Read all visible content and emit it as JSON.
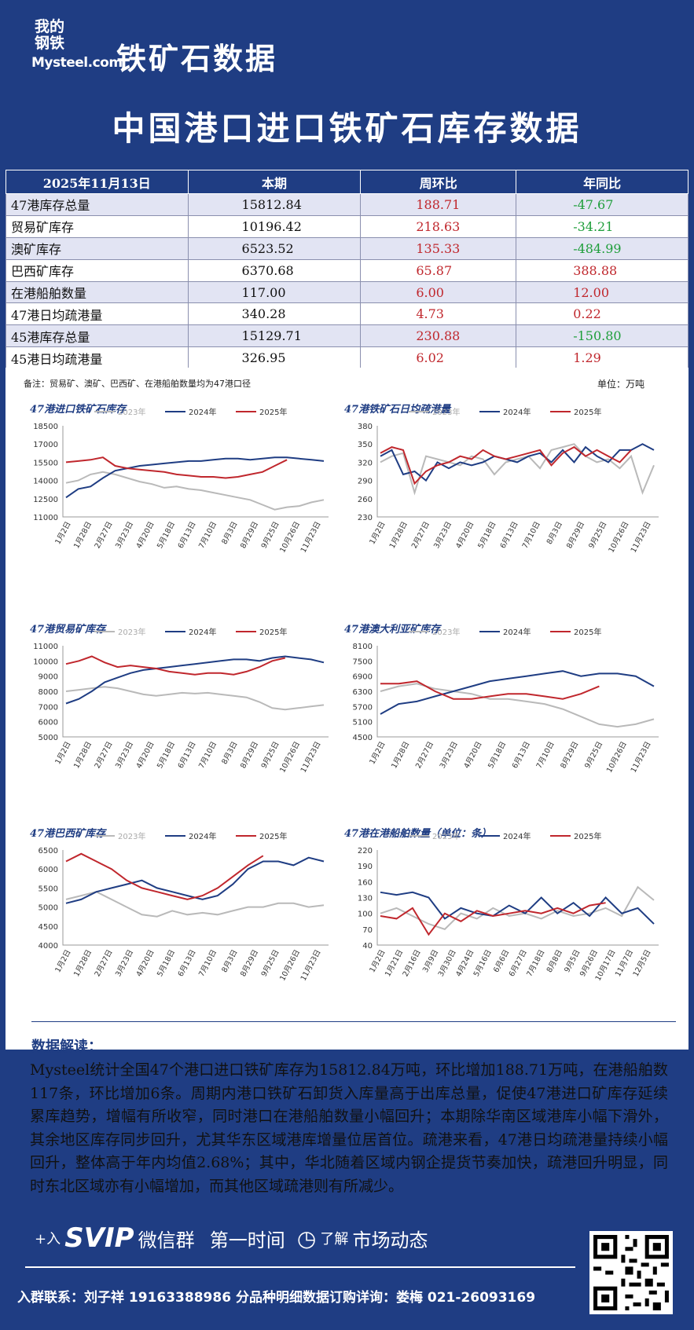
{
  "header": {
    "logo_cn": "我的钢铁",
    "logo_en": "Mysteel.com",
    "brand_title": "铁矿石数据",
    "main_title": "中国港口进口铁矿石库存数据"
  },
  "table": {
    "headers": [
      "2025年11月13日",
      "本期",
      "周环比",
      "年同比"
    ],
    "rows": [
      {
        "name": "47港库存总量",
        "current": "15812.84",
        "wow": "188.71",
        "yoy": "-47.67"
      },
      {
        "name": "贸易矿库存",
        "current": "10196.42",
        "wow": "218.63",
        "yoy": "-34.21"
      },
      {
        "name": "澳矿库存",
        "current": "6523.52",
        "wow": "135.33",
        "yoy": "-484.99"
      },
      {
        "name": "巴西矿库存",
        "current": "6370.68",
        "wow": "65.87",
        "yoy": "388.88"
      },
      {
        "name": "在港船舶数量",
        "current": "117.00",
        "wow": "6.00",
        "yoy": "12.00"
      },
      {
        "name": "47港日均疏港量",
        "current": "340.28",
        "wow": "4.73",
        "yoy": "0.22"
      },
      {
        "name": "45港库存总量",
        "current": "15129.71",
        "wow": "230.88",
        "yoy": "-150.80"
      },
      {
        "name": "45港日均疏港量",
        "current": "326.95",
        "wow": "6.02",
        "yoy": "1.29"
      }
    ],
    "note": "备注：贸易矿、澳矿、巴西矿、在港船舶数量均为47港口径",
    "unit": "单位：万吨"
  },
  "colors": {
    "y2023": "#b9b9b9",
    "y2024": "#1f3d83",
    "y2025": "#c0272d",
    "up": "#c0272d",
    "down": "#1e9e3a"
  },
  "chart_data": [
    {
      "type": "line",
      "title": "47港进口铁矿石库存",
      "ylim": [
        11000,
        18500
      ],
      "yticks": [
        11000,
        12500,
        14000,
        15500,
        17000,
        18500
      ],
      "xticks": [
        "1月2日",
        "1月28日",
        "2月27日",
        "3月23日",
        "4月20日",
        "5月18日",
        "6月13日",
        "7月10日",
        "8月3日",
        "8月29日",
        "9月25日",
        "10月26日",
        "11月23日"
      ],
      "series": [
        {
          "name": "2023年",
          "values": [
            13800,
            14000,
            14500,
            14700,
            14500,
            14200,
            13900,
            13700,
            13400,
            13500,
            13300,
            13200,
            13000,
            12800,
            12600,
            12400,
            12000,
            11600,
            11800,
            11900,
            12200,
            12400
          ]
        },
        {
          "name": "2024年",
          "values": [
            12600,
            13300,
            13500,
            14200,
            14800,
            15000,
            15200,
            15300,
            15400,
            15500,
            15600,
            15600,
            15700,
            15800,
            15800,
            15700,
            15800,
            15900,
            15900,
            15800,
            15700,
            15600
          ]
        },
        {
          "name": "2025年",
          "values": [
            15500,
            15600,
            15700,
            15900,
            15200,
            15000,
            14900,
            14800,
            14700,
            14500,
            14400,
            14300,
            14300,
            14200,
            14300,
            14500,
            14700,
            15200,
            15700
          ]
        }
      ]
    },
    {
      "type": "line",
      "title": "47港铁矿石日均疏港量",
      "ylim": [
        230,
        380
      ],
      "yticks": [
        230,
        260,
        290,
        320,
        350,
        380
      ],
      "xticks": [
        "1月2日",
        "1月28日",
        "2月27日",
        "3月23日",
        "4月20日",
        "5月18日",
        "6月13日",
        "7月10日",
        "8月3日",
        "8月29日",
        "9月25日",
        "10月26日",
        "11月23日"
      ],
      "series": [
        {
          "name": "2023年",
          "values": [
            320,
            330,
            335,
            270,
            330,
            325,
            320,
            315,
            330,
            325,
            300,
            320,
            325,
            330,
            310,
            340,
            345,
            350,
            330,
            320,
            325,
            310,
            330,
            270,
            315
          ]
        },
        {
          "name": "2024年",
          "values": [
            330,
            340,
            300,
            305,
            290,
            320,
            310,
            320,
            315,
            320,
            330,
            325,
            320,
            330,
            335,
            320,
            340,
            320,
            345,
            330,
            320,
            340,
            340,
            350,
            340
          ]
        },
        {
          "name": "2025年",
          "values": [
            335,
            345,
            340,
            285,
            305,
            315,
            320,
            330,
            325,
            340,
            330,
            325,
            330,
            335,
            340,
            315,
            335,
            345,
            330,
            340,
            330,
            320,
            340
          ]
        }
      ]
    },
    {
      "type": "line",
      "title": "47港贸易矿库存",
      "ylim": [
        5000,
        11000
      ],
      "yticks": [
        5000,
        6000,
        7000,
        8000,
        9000,
        10000,
        11000
      ],
      "xticks": [
        "1月2日",
        "1月28日",
        "2月27日",
        "3月23日",
        "4月20日",
        "5月18日",
        "6月13日",
        "7月10日",
        "8月3日",
        "8月29日",
        "9月25日",
        "10月26日",
        "11月23日"
      ],
      "series": [
        {
          "name": "2023年",
          "values": [
            8000,
            8100,
            8200,
            8300,
            8200,
            8000,
            7800,
            7700,
            7800,
            7900,
            7850,
            7900,
            7800,
            7700,
            7600,
            7300,
            6900,
            6800,
            6900,
            7000,
            7100
          ]
        },
        {
          "name": "2024年",
          "values": [
            7200,
            7500,
            8000,
            8600,
            8900,
            9200,
            9400,
            9500,
            9600,
            9700,
            9800,
            9900,
            10000,
            10100,
            10100,
            10000,
            10200,
            10300,
            10200,
            10100,
            9900
          ]
        },
        {
          "name": "2025年",
          "values": [
            9800,
            10000,
            10300,
            9900,
            9600,
            9700,
            9600,
            9500,
            9300,
            9200,
            9100,
            9200,
            9200,
            9100,
            9300,
            9600,
            10000,
            10200
          ]
        }
      ]
    },
    {
      "type": "line",
      "title": "47港澳大利亚矿库存",
      "ylim": [
        4500,
        8100
      ],
      "yticks": [
        4500,
        5100,
        5700,
        6300,
        6900,
        7500,
        8100
      ],
      "xticks": [
        "1月2日",
        "1月28日",
        "2月27日",
        "3月23日",
        "4月20日",
        "5月18日",
        "6月13日",
        "7月10日",
        "8月29日",
        "9月25日",
        "10月26日",
        "11月23日"
      ],
      "series": [
        {
          "name": "2023年",
          "values": [
            6300,
            6500,
            6600,
            6400,
            6300,
            6200,
            6000,
            6000,
            5900,
            5800,
            5600,
            5300,
            5000,
            4900,
            5000,
            5200
          ]
        },
        {
          "name": "2024年",
          "values": [
            5400,
            5800,
            5900,
            6100,
            6300,
            6500,
            6700,
            6800,
            6900,
            7000,
            7100,
            6900,
            7000,
            7000,
            6900,
            6500
          ]
        },
        {
          "name": "2025年",
          "values": [
            6600,
            6600,
            6700,
            6300,
            6000,
            6000,
            6100,
            6200,
            6200,
            6100,
            6000,
            6200,
            6500
          ]
        }
      ]
    },
    {
      "type": "line",
      "title": "47港巴西矿库存",
      "ylim": [
        4000,
        6500
      ],
      "yticks": [
        4000,
        4500,
        5000,
        5500,
        6000,
        6500
      ],
      "xticks": [
        "1月2日",
        "1月28日",
        "2月27日",
        "3月23日",
        "4月20日",
        "5月18日",
        "6月13日",
        "7月10日",
        "8月3日",
        "8月29日",
        "9月25日",
        "10月26日",
        "11月23日"
      ],
      "series": [
        {
          "name": "2023年",
          "values": [
            5200,
            5300,
            5400,
            5200,
            5000,
            4800,
            4750,
            4900,
            4800,
            4850,
            4800,
            4900,
            5000,
            5000,
            5100,
            5100,
            5000,
            5050
          ]
        },
        {
          "name": "2024年",
          "values": [
            5100,
            5200,
            5400,
            5500,
            5600,
            5700,
            5500,
            5400,
            5300,
            5200,
            5300,
            5600,
            6000,
            6200,
            6200,
            6100,
            6300,
            6200
          ]
        },
        {
          "name": "2025年",
          "values": [
            6200,
            6400,
            6200,
            6000,
            5700,
            5500,
            5400,
            5300,
            5200,
            5300,
            5500,
            5800,
            6100,
            6350
          ]
        }
      ]
    },
    {
      "type": "line",
      "title": "47港在港船舶数量（单位：条）",
      "ylim": [
        40,
        220
      ],
      "yticks": [
        40,
        70,
        100,
        130,
        160,
        190,
        220
      ],
      "xticks": [
        "1月2日",
        "1月21日",
        "2月16日",
        "3月9日",
        "3月30日",
        "4月24日",
        "5月16日",
        "6月6日",
        "6月27日",
        "7月18日",
        "8月8日",
        "9月5日",
        "9月26日",
        "10月17日",
        "11月7日",
        "12月5日"
      ],
      "series": [
        {
          "name": "2023年",
          "values": [
            100,
            110,
            95,
            80,
            70,
            100,
            90,
            110,
            95,
            100,
            90,
            105,
            95,
            100,
            110,
            95,
            150,
            125
          ]
        },
        {
          "name": "2024年",
          "values": [
            140,
            135,
            140,
            130,
            90,
            110,
            100,
            95,
            115,
            100,
            130,
            100,
            120,
            95,
            130,
            100,
            110,
            80
          ]
        },
        {
          "name": "2025年",
          "values": [
            95,
            90,
            110,
            60,
            100,
            85,
            105,
            95,
            100,
            105,
            100,
            110,
            100,
            115,
            120
          ]
        }
      ]
    }
  ],
  "interpretation": {
    "title": "数据解读：",
    "text": "Mysteel统计全国47个港口进口铁矿库存为15812.84万吨，环比增加188.71万吨，在港船舶数117条，环比增加6条。周期内港口铁矿石卸货入库量高于出库总量，促使47港进口矿库存延续累库趋势，增幅有所收窄，同时港口在港船舶数量小幅回升；本期除华南区域港库小幅下滑外，其余地区库存同步回升，尤其华东区域港库增量位居首位。疏港来看，47港日均疏港量持续小幅回升，整体高于年内均值2.68%；其中，华北随着区域内钢企提货节奏加快，疏港回升明显，同时东北区域亦有小幅增加，而其他区域疏港则有所减少。"
  },
  "footer": {
    "promo": [
      "+入",
      "SVIP",
      "微信群",
      "第一时间",
      "了解",
      "市场动态"
    ],
    "contact": "入群联系：刘子祥 19163388986   分品种明细数据订购详询：娄梅 021-26093169"
  }
}
